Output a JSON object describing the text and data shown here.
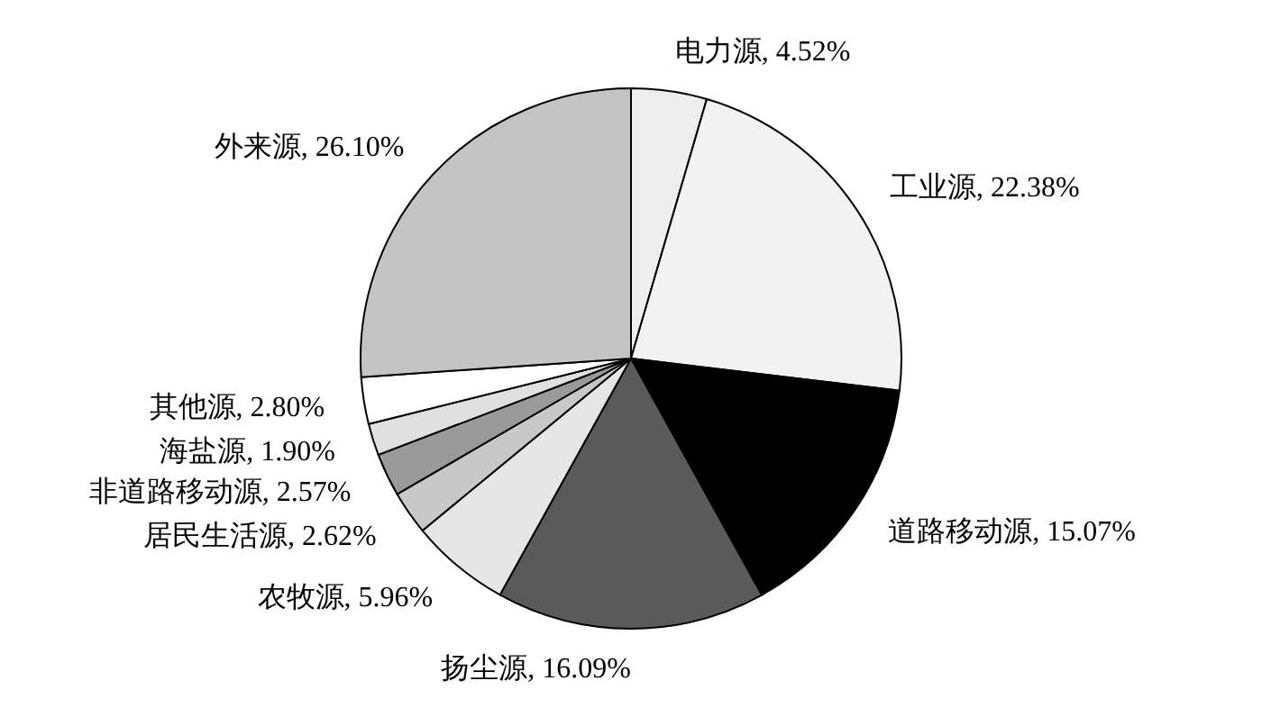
{
  "chart_data": {
    "type": "pie",
    "categories": [
      "电力源",
      "工业源",
      "道路移动源",
      "扬尘源",
      "农牧源",
      "居民生活源",
      "非道路移动源",
      "海盐源",
      "其他源",
      "外来源"
    ],
    "values": [
      4.52,
      22.38,
      15.07,
      16.09,
      5.96,
      2.62,
      2.57,
      1.9,
      2.8,
      26.1
    ],
    "value_labels": [
      "4.52%",
      "22.38%",
      "15.07%",
      "16.09%",
      "5.96%",
      "2.62%",
      "2.57%",
      "1.90%",
      "2.80%",
      "26.10%"
    ],
    "colors": [
      "#eeeeee",
      "#f2f2f2",
      "#000000",
      "#5a5a5a",
      "#e6e6e6",
      "#c8c8c8",
      "#9a9a9a",
      "#e0e0e0",
      "#ffffff",
      "#c4c4c4"
    ],
    "legend": false
  }
}
